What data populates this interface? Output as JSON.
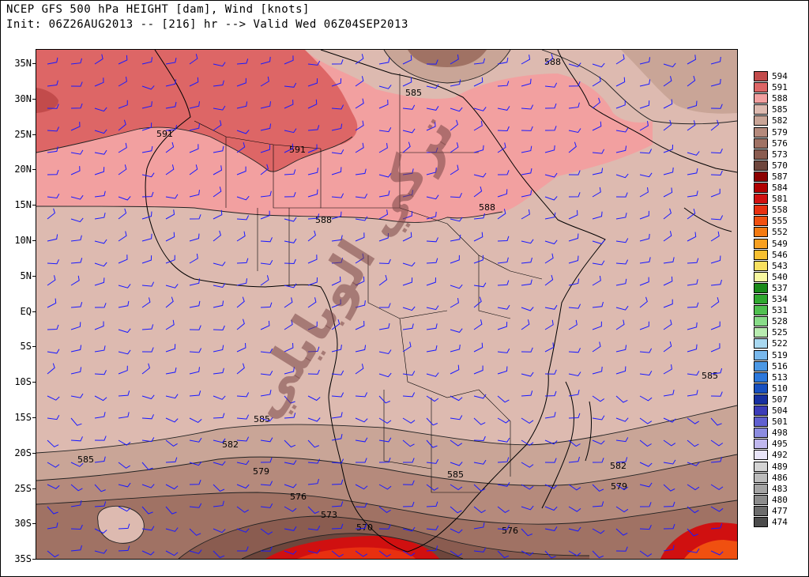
{
  "header": {
    "title_line1": "NCEP GFS 500 hPa HEIGHT [dam], Wind [knots]",
    "title_line2": "Init: 06Z26AUG2013 -- [216] hr --> Valid Wed 06Z04SEP2013"
  },
  "latitude_labels": [
    "35N",
    "30N",
    "25N",
    "20N",
    "15N",
    "10N",
    "5N",
    "EQ",
    "5S",
    "10S",
    "15S",
    "20S",
    "25S",
    "30S",
    "35S"
  ],
  "contour_labels": [
    "588",
    "585",
    "591",
    "591",
    "588",
    "588",
    "585",
    "585",
    "582",
    "585",
    "579",
    "582",
    "579",
    "576",
    "573",
    "570",
    "576",
    "585"
  ],
  "legend": [
    {
      "label": "594",
      "color": "#c24b4b"
    },
    {
      "label": "591",
      "color": "#dd6666"
    },
    {
      "label": "588",
      "color": "#f2a0a0"
    },
    {
      "label": "585",
      "color": "#ddbab0"
    },
    {
      "label": "582",
      "color": "#c9a597"
    },
    {
      "label": "579",
      "color": "#b58a7c"
    },
    {
      "label": "576",
      "color": "#a07264"
    },
    {
      "label": "573",
      "color": "#8a5c50"
    },
    {
      "label": "570",
      "color": "#6e463c"
    },
    {
      "label": "587",
      "color": "#8b0000"
    },
    {
      "label": "584",
      "color": "#b00000"
    },
    {
      "label": "581",
      "color": "#d01010"
    },
    {
      "label": "558",
      "color": "#e83010"
    },
    {
      "label": "555",
      "color": "#f05010"
    },
    {
      "label": "552",
      "color": "#f47a10"
    },
    {
      "label": "549",
      "color": "#f8a020"
    },
    {
      "label": "546",
      "color": "#f8c030"
    },
    {
      "label": "543",
      "color": "#f8e060"
    },
    {
      "label": "540",
      "color": "#f8f8a0"
    },
    {
      "label": "537",
      "color": "#1a8a1a"
    },
    {
      "label": "534",
      "color": "#30a830"
    },
    {
      "label": "531",
      "color": "#50c050"
    },
    {
      "label": "528",
      "color": "#88dc88"
    },
    {
      "label": "525",
      "color": "#b8ecb0"
    },
    {
      "label": "522",
      "color": "#a8d8f0"
    },
    {
      "label": "519",
      "color": "#78b8ec"
    },
    {
      "label": "516",
      "color": "#4c98e4"
    },
    {
      "label": "513",
      "color": "#2c78dc"
    },
    {
      "label": "510",
      "color": "#1850c0"
    },
    {
      "label": "507",
      "color": "#1830a0"
    },
    {
      "label": "504",
      "color": "#3c3cb8"
    },
    {
      "label": "501",
      "color": "#6060d0"
    },
    {
      "label": "498",
      "color": "#8c8ce0"
    },
    {
      "label": "495",
      "color": "#c0b8ee"
    },
    {
      "label": "492",
      "color": "#e8e4f8"
    },
    {
      "label": "489",
      "color": "#d4d4d4"
    },
    {
      "label": "486",
      "color": "#bcbcbc"
    },
    {
      "label": "483",
      "color": "#a4a4a4"
    },
    {
      "label": "480",
      "color": "#8c8c8c"
    },
    {
      "label": "477",
      "color": "#6c6c6c"
    },
    {
      "label": "474",
      "color": "#4c4c4c"
    }
  ],
  "watermark": "تركي الوبايلي",
  "colors": {
    "wind_barb": "#1a1aff",
    "coastline": "#000000",
    "contour": "#222222"
  }
}
